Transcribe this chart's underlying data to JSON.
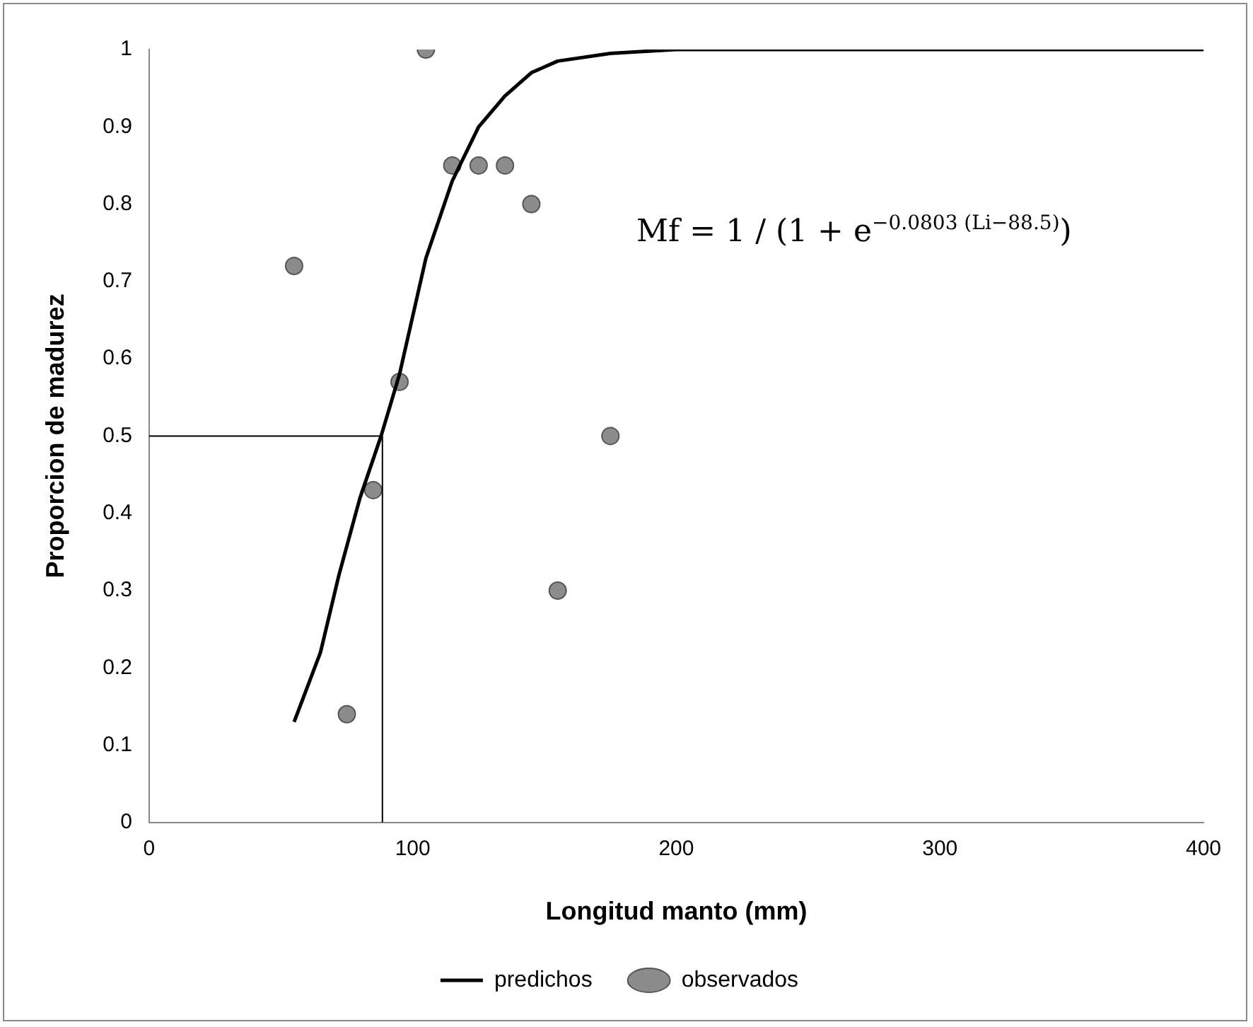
{
  "chart_data": {
    "type": "scatter",
    "xlabel": "Longitud manto (mm)",
    "ylabel": "Proporcion de madurez",
    "xlim": [
      0,
      400
    ],
    "xticks": [
      0,
      100,
      200,
      300,
      400
    ],
    "ylim": [
      0,
      1
    ],
    "yticks": [
      0,
      0.1,
      0.2,
      0.3,
      0.4,
      0.5,
      0.6,
      0.7,
      0.8,
      0.9,
      1
    ],
    "grid": false,
    "legend": "bottom",
    "series": [
      {
        "name": "predichos",
        "type": "line",
        "color": "#000000",
        "marker": "none",
        "x": [
          55,
          65,
          72,
          80,
          88,
          95,
          105,
          115,
          125,
          135,
          145,
          155,
          175,
          200,
          400
        ],
        "values": [
          0.13,
          0.22,
          0.32,
          0.42,
          0.5,
          0.58,
          0.73,
          0.83,
          0.9,
          0.94,
          0.97,
          0.985,
          0.995,
          1,
          1
        ]
      },
      {
        "name": "observados",
        "type": "scatter",
        "color": "#8c8c8c",
        "marker": "circle",
        "x": [
          55,
          75,
          85,
          95,
          105,
          115,
          125,
          135,
          145,
          155,
          175
        ],
        "values": [
          0.72,
          0.14,
          0.43,
          0.57,
          1,
          0.85,
          0.85,
          0.85,
          0.8,
          0.3,
          0.5
        ]
      }
    ],
    "ref_lines": [
      {
        "axis": "y",
        "value": 0.5
      },
      {
        "axis": "x",
        "value": 88.5
      }
    ],
    "annotations": [
      "Mf = 1 / (1 + e$^{−0.0803 (Li−88.5)}$)"
    ]
  }
}
